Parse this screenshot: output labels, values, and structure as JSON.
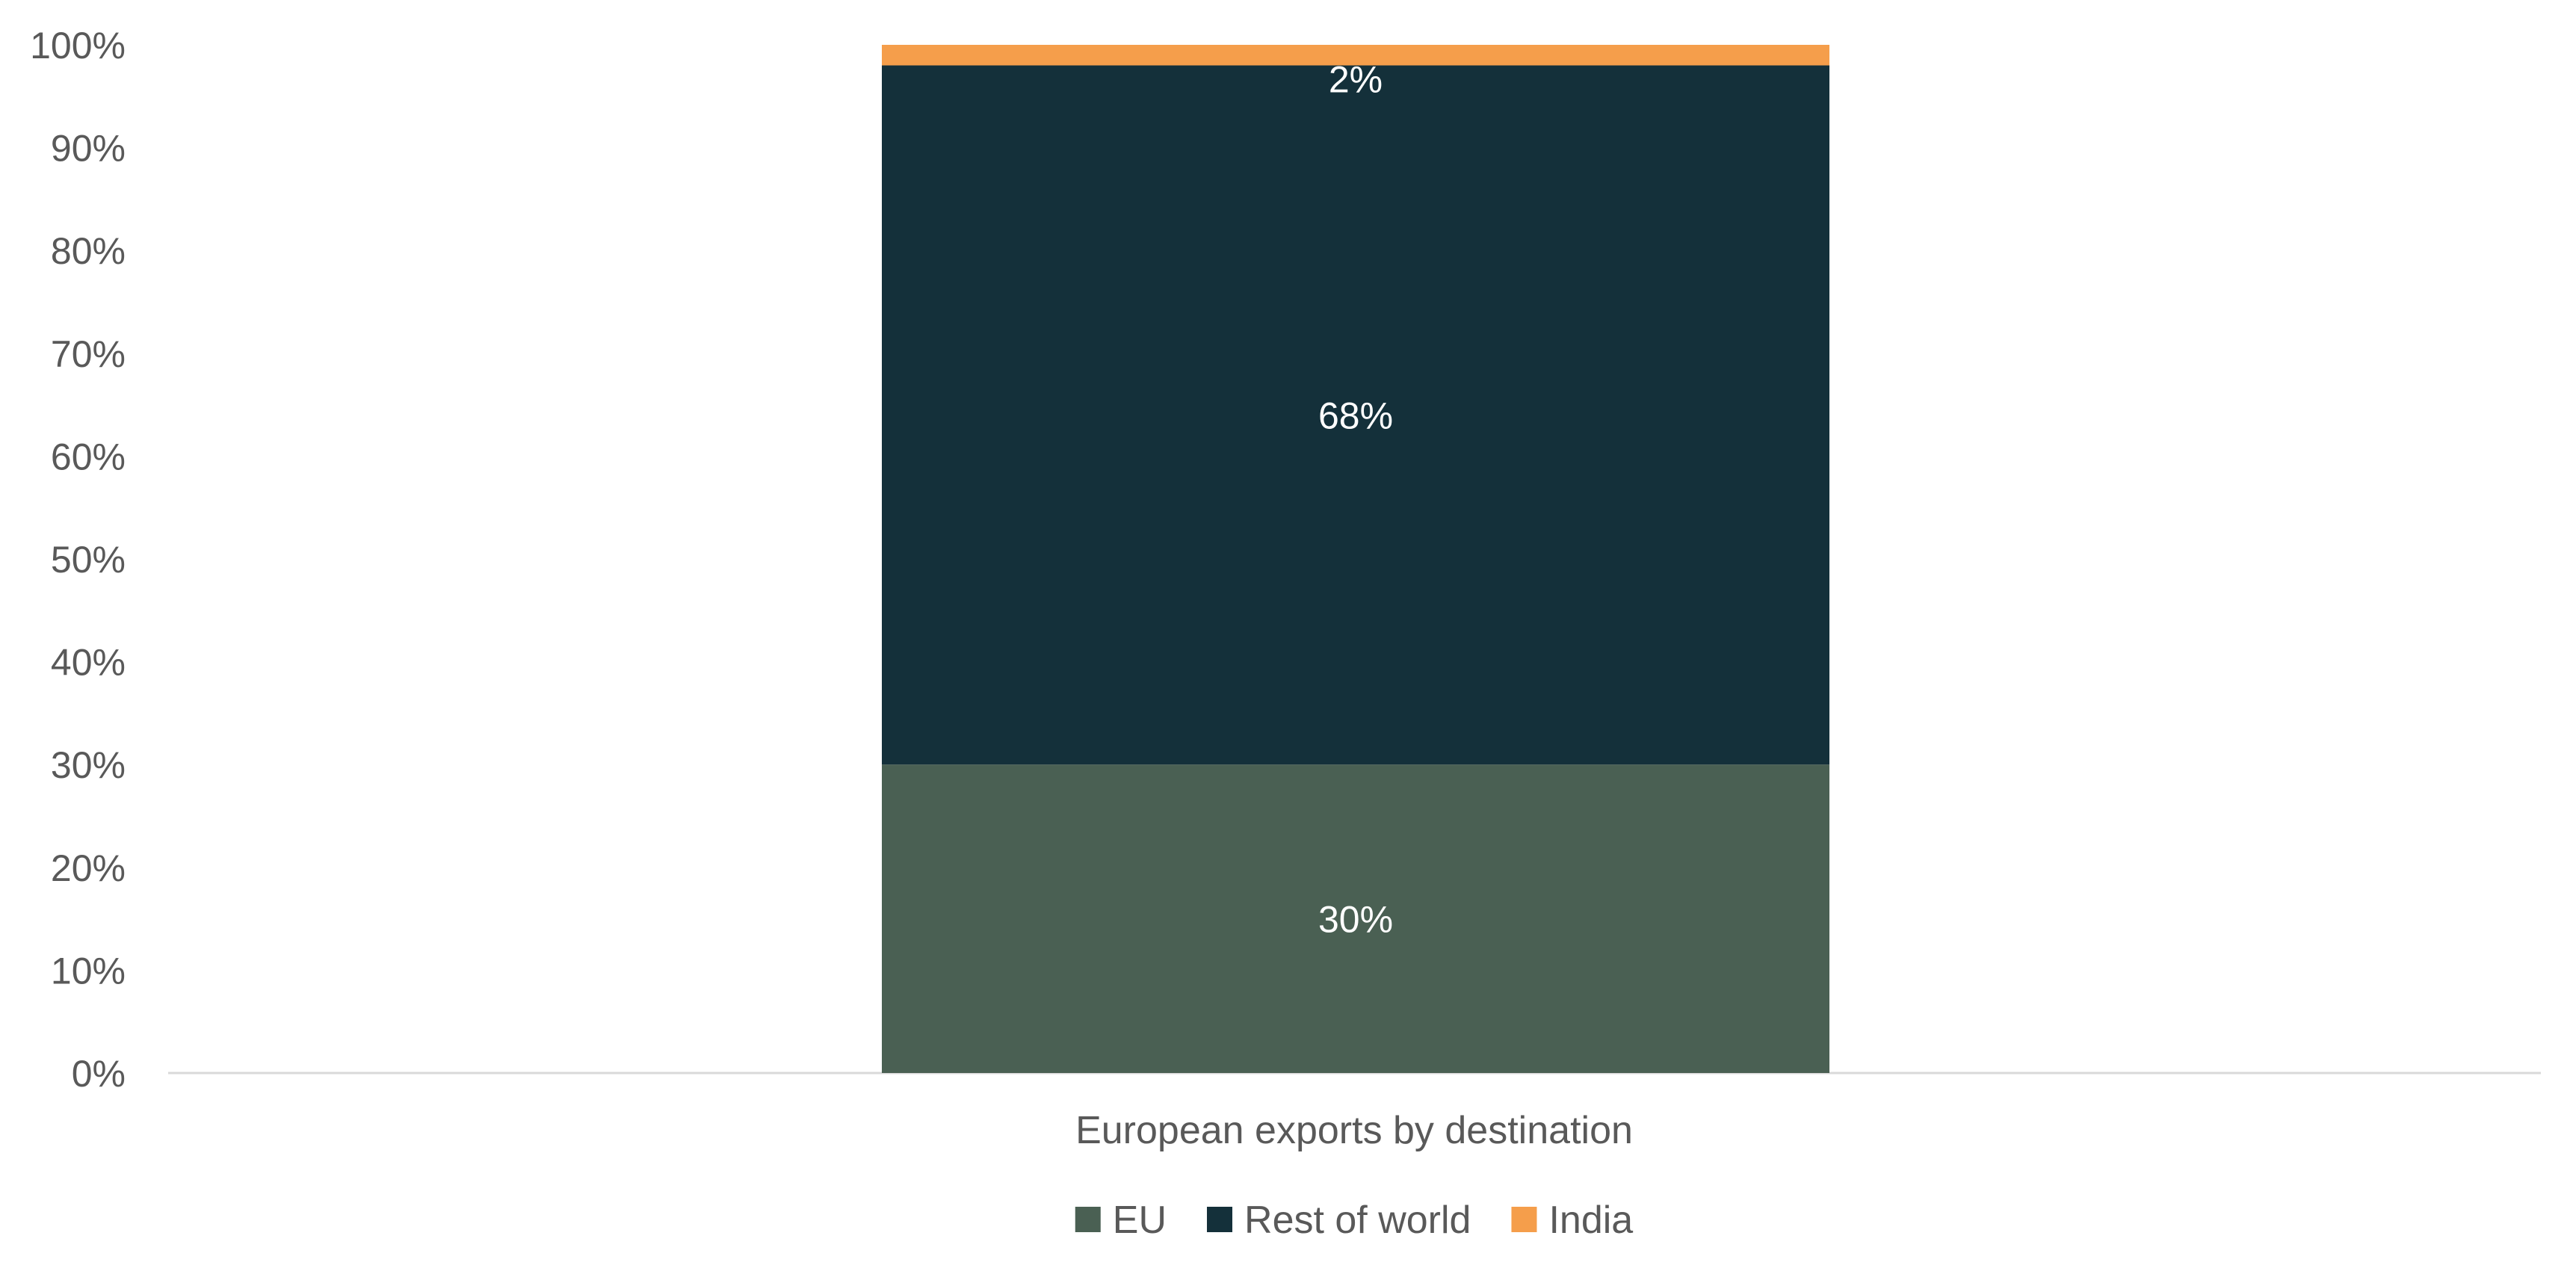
{
  "chart_data": {
    "type": "bar",
    "stacked": true,
    "categories": [
      "European exports by destination"
    ],
    "series": [
      {
        "name": "EU",
        "values": [
          30
        ],
        "color": "#4a6053",
        "label": "30%"
      },
      {
        "name": "Rest of world",
        "values": [
          68
        ],
        "color": "#14303a",
        "label": "68%"
      },
      {
        "name": "India",
        "values": [
          2
        ],
        "color": "#f59e4b",
        "label": "2%"
      }
    ],
    "y_ticks": [
      "0%",
      "10%",
      "20%",
      "30%",
      "40%",
      "50%",
      "60%",
      "70%",
      "80%",
      "90%",
      "100%"
    ],
    "ylim": [
      0,
      100
    ],
    "grid": false,
    "legend_position": "bottom",
    "title": "",
    "xlabel": "",
    "ylabel": ""
  }
}
